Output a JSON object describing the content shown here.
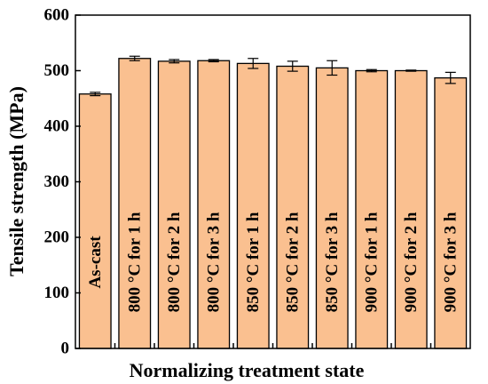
{
  "chart_data": {
    "type": "bar",
    "title": "",
    "xlabel": "Normalizing treatment state",
    "ylabel": "Tensile strength (MPa)",
    "ylim": [
      0,
      600
    ],
    "yticks": [
      0,
      100,
      200,
      300,
      400,
      500,
      600
    ],
    "bar_color": "#FAC090",
    "edge_color": "#000000",
    "categories": [
      "As-cast",
      "800 °C for 1 h",
      "800 °C for 2 h",
      "800 °C for 3 h",
      "850 °C for 1 h",
      "850 °C for 2 h",
      "850 °C for 3 h",
      "900 °C for 1 h",
      "900 °C for 2 h",
      "900 °C for 3 h"
    ],
    "values": [
      458,
      522,
      517,
      518,
      513,
      508,
      505,
      500,
      500,
      487
    ],
    "errors": [
      3,
      4,
      3,
      2,
      9,
      9,
      13,
      2,
      1,
      10
    ]
  }
}
